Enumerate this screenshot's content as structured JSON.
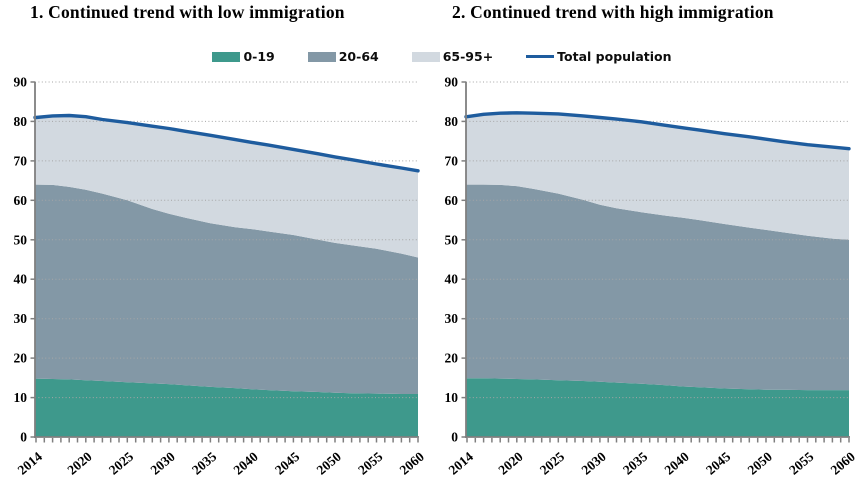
{
  "page": {
    "background": "#ffffff"
  },
  "colors": {
    "band_0_19": "#3E998C",
    "band_20_64": "#8398A6",
    "band_65_95": "#D2D9E0",
    "total_line": "#1E5C9E",
    "axis": "#7f7f7f",
    "gridline": "#a6a6a6",
    "text": "#000000"
  },
  "legend": {
    "items": [
      {
        "label": "0-19",
        "type": "swatch",
        "color": "#3E998C"
      },
      {
        "label": "20-64",
        "type": "swatch",
        "color": "#8398A6"
      },
      {
        "label": "65-95+",
        "type": "swatch",
        "color": "#D2D9E0"
      },
      {
        "label": "Total population",
        "type": "line",
        "color": "#1E5C9E"
      }
    ]
  },
  "chart_data": [
    {
      "type": "area",
      "stacked": true,
      "title": "1. Continued trend with low immigration",
      "x": [
        2014,
        2016,
        2018,
        2020,
        2022,
        2025,
        2028,
        2030,
        2032,
        2035,
        2038,
        2040,
        2042,
        2045,
        2048,
        2050,
        2052,
        2055,
        2058,
        2060
      ],
      "x_range": [
        2014,
        2060
      ],
      "x_tick_labels": [
        "2014",
        "2020",
        "2025",
        "2030",
        "2035",
        "2040",
        "2045",
        "2050",
        "2055",
        "2060"
      ],
      "minor_x_tick_interval_years": 1,
      "ylim": [
        0,
        90
      ],
      "y_ticks": [
        0,
        10,
        20,
        30,
        40,
        50,
        60,
        70,
        80,
        90
      ],
      "grid": "dotted-horizontal",
      "series": [
        {
          "name": "0-19",
          "color": "#3E998C",
          "values": [
            14.8,
            14.7,
            14.6,
            14.4,
            14.2,
            13.9,
            13.6,
            13.4,
            13.1,
            12.7,
            12.4,
            12.1,
            11.9,
            11.6,
            11.4,
            11.2,
            11.1,
            11.0,
            10.9,
            10.9
          ]
        },
        {
          "name": "20-64",
          "color": "#8398A6",
          "values": [
            49.2,
            49.2,
            48.8,
            48.3,
            47.5,
            46.1,
            44.2,
            43.2,
            42.5,
            41.5,
            40.8,
            40.6,
            40.2,
            39.6,
            38.6,
            38.0,
            37.5,
            36.7,
            35.6,
            34.6
          ]
        },
        {
          "name": "65-95+",
          "color": "#D2D9E0",
          "values": [
            17.0,
            17.5,
            18.1,
            18.5,
            18.8,
            19.7,
            21.0,
            21.6,
            21.9,
            22.3,
            22.2,
            22.0,
            21.9,
            21.7,
            21.8,
            21.8,
            21.7,
            21.5,
            21.7,
            22.0
          ]
        }
      ],
      "line_series": {
        "name": "Total population",
        "color": "#1E5C9E",
        "values": [
          81.0,
          81.4,
          81.5,
          81.2,
          80.5,
          79.7,
          78.8,
          78.2,
          77.5,
          76.5,
          75.4,
          74.7,
          74.0,
          72.9,
          71.8,
          71.0,
          70.3,
          69.2,
          68.2,
          67.5
        ]
      }
    },
    {
      "type": "area",
      "stacked": true,
      "title": "2. Continued trend with high immigration",
      "x": [
        2014,
        2016,
        2018,
        2020,
        2022,
        2025,
        2028,
        2030,
        2032,
        2035,
        2038,
        2040,
        2042,
        2045,
        2048,
        2050,
        2052,
        2055,
        2058,
        2060
      ],
      "x_range": [
        2014,
        2060
      ],
      "x_tick_labels": [
        "2014",
        "2020",
        "2025",
        "2030",
        "2035",
        "2040",
        "2045",
        "2050",
        "2055",
        "2060"
      ],
      "minor_x_tick_interval_years": 1,
      "ylim": [
        0,
        90
      ],
      "y_ticks": [
        0,
        10,
        20,
        30,
        40,
        50,
        60,
        70,
        80,
        90
      ],
      "grid": "dotted-horizontal",
      "series": [
        {
          "name": "0-19",
          "color": "#3E998C",
          "values": [
            14.9,
            14.9,
            14.8,
            14.7,
            14.6,
            14.4,
            14.2,
            14.0,
            13.8,
            13.5,
            13.1,
            12.8,
            12.6,
            12.3,
            12.1,
            12.0,
            12.0,
            11.9,
            11.9,
            11.9
          ]
        },
        {
          "name": "20-64",
          "color": "#8398A6",
          "values": [
            49.1,
            49.1,
            49.1,
            48.9,
            48.3,
            47.3,
            45.9,
            44.9,
            44.2,
            43.5,
            43.0,
            42.8,
            42.4,
            41.7,
            41.0,
            40.5,
            39.9,
            39.1,
            38.4,
            38.1
          ]
        },
        {
          "name": "65-95+",
          "color": "#D2D9E0",
          "values": [
            17.2,
            17.8,
            18.2,
            18.6,
            19.2,
            20.2,
            21.3,
            22.1,
            22.6,
            22.9,
            22.9,
            22.8,
            22.8,
            22.9,
            23.0,
            23.0,
            23.0,
            23.1,
            23.2,
            23.1
          ]
        }
      ],
      "line_series": {
        "name": "Total population",
        "color": "#1E5C9E",
        "values": [
          81.2,
          81.8,
          82.1,
          82.2,
          82.1,
          81.9,
          81.4,
          81.0,
          80.6,
          79.9,
          79.0,
          78.4,
          77.8,
          76.9,
          76.1,
          75.5,
          74.9,
          74.1,
          73.5,
          73.1
        ]
      }
    }
  ]
}
